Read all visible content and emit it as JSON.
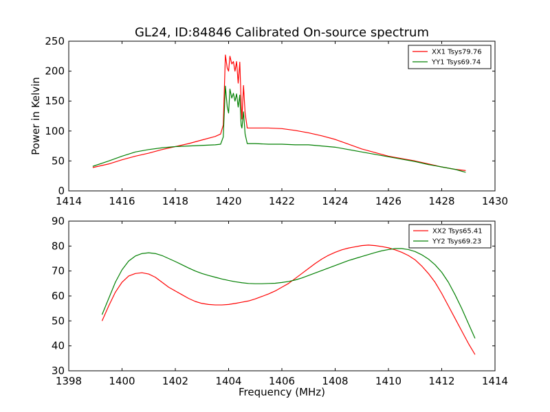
{
  "figure_title": "GL24, ID:84846 Calibrated On-source spectrum",
  "chart_data": [
    {
      "type": "line",
      "title": "GL24, ID:84846 Calibrated On-source spectrum",
      "xlabel": "",
      "ylabel": "Power in Kelvin",
      "xlim": [
        1414,
        1430
      ],
      "ylim": [
        0,
        250
      ],
      "xticks": [
        1414,
        1416,
        1418,
        1420,
        1422,
        1424,
        1426,
        1428,
        1430
      ],
      "yticks": [
        0,
        50,
        100,
        150,
        200,
        250
      ],
      "legend_position": "top-right",
      "series": [
        {
          "name": "XX1 Tsys79.76",
          "color": "#ff0000",
          "x": [
            1414.9,
            1415.5,
            1416.0,
            1416.5,
            1417.0,
            1417.5,
            1418.0,
            1418.5,
            1419.0,
            1419.5,
            1419.7,
            1419.8,
            1419.88,
            1419.95,
            1420.0,
            1420.05,
            1420.12,
            1420.18,
            1420.24,
            1420.3,
            1420.36,
            1420.42,
            1420.47,
            1420.5,
            1420.56,
            1420.62,
            1420.7,
            1421.0,
            1421.5,
            1422.0,
            1422.5,
            1423.0,
            1423.5,
            1424.0,
            1424.5,
            1425.0,
            1425.5,
            1426.0,
            1426.5,
            1427.0,
            1427.5,
            1428.0,
            1428.5,
            1428.9
          ],
          "y": [
            39,
            45,
            52,
            58,
            63,
            69,
            74,
            79,
            85,
            91,
            95,
            110,
            227,
            205,
            200,
            225,
            212,
            216,
            200,
            216,
            180,
            215,
            150,
            120,
            176,
            130,
            105,
            105,
            105,
            104,
            101,
            97,
            92,
            86,
            78,
            70,
            64,
            58,
            54,
            50,
            45,
            40,
            36,
            34
          ]
        },
        {
          "name": "YY1 Tsys69.74",
          "color": "#007f00",
          "x": [
            1414.9,
            1415.5,
            1416.0,
            1416.5,
            1417.0,
            1417.5,
            1418.0,
            1418.5,
            1419.0,
            1419.5,
            1419.7,
            1419.8,
            1419.88,
            1419.95,
            1420.0,
            1420.05,
            1420.12,
            1420.18,
            1420.24,
            1420.3,
            1420.36,
            1420.42,
            1420.47,
            1420.5,
            1420.56,
            1420.62,
            1420.7,
            1421.0,
            1421.5,
            1422.0,
            1422.5,
            1423.0,
            1423.5,
            1424.0,
            1424.5,
            1425.0,
            1425.5,
            1426.0,
            1426.5,
            1427.0,
            1427.5,
            1428.0,
            1428.5,
            1428.9
          ],
          "y": [
            41,
            50,
            58,
            65,
            69,
            72,
            74,
            75,
            76,
            77,
            78,
            90,
            175,
            140,
            130,
            170,
            155,
            163,
            150,
            162,
            140,
            160,
            110,
            105,
            132,
            95,
            79,
            79,
            78,
            78,
            77,
            77,
            75,
            73,
            69,
            65,
            61,
            57,
            53,
            49,
            44,
            40,
            36,
            31
          ]
        }
      ]
    },
    {
      "type": "line",
      "title": "",
      "xlabel": "Frequency (MHz)",
      "ylabel": "",
      "xlim": [
        1398,
        1414
      ],
      "ylim": [
        30,
        90
      ],
      "xticks": [
        1398,
        1400,
        1402,
        1404,
        1406,
        1408,
        1410,
        1412,
        1414
      ],
      "yticks": [
        30,
        40,
        50,
        60,
        70,
        80,
        90
      ],
      "legend_position": "top-right",
      "series": [
        {
          "name": "XX2 Tsys65.41",
          "color": "#ff0000",
          "x": [
            1399.25,
            1399.5,
            1399.75,
            1400.0,
            1400.25,
            1400.5,
            1400.75,
            1401.0,
            1401.25,
            1401.5,
            1401.75,
            1402.0,
            1402.25,
            1402.5,
            1402.75,
            1403.0,
            1403.25,
            1403.5,
            1403.75,
            1404.0,
            1404.25,
            1404.5,
            1404.75,
            1405.0,
            1405.25,
            1405.5,
            1405.75,
            1406.0,
            1406.25,
            1406.5,
            1406.75,
            1407.0,
            1407.25,
            1407.5,
            1407.75,
            1408.0,
            1408.25,
            1408.5,
            1408.75,
            1409.0,
            1409.25,
            1409.5,
            1409.75,
            1410.0,
            1410.25,
            1410.5,
            1410.75,
            1411.0,
            1411.25,
            1411.5,
            1411.75,
            1412.0,
            1412.25,
            1412.5,
            1412.75,
            1413.0,
            1413.25
          ],
          "y": [
            50,
            56,
            61.5,
            65.5,
            68,
            69,
            69.3,
            68.8,
            67.5,
            65.5,
            63.5,
            62,
            60.5,
            59,
            57.8,
            57,
            56.6,
            56.4,
            56.4,
            56.6,
            57,
            57.5,
            58,
            58.8,
            59.8,
            60.8,
            62,
            63.5,
            65,
            67,
            69,
            71,
            73,
            74.8,
            76.3,
            77.5,
            78.5,
            79.2,
            79.7,
            80.2,
            80.4,
            80.2,
            79.8,
            79.3,
            78.5,
            77.5,
            76.2,
            74.5,
            72,
            69,
            65.5,
            61,
            56,
            51,
            46,
            41,
            36.5
          ]
        },
        {
          "name": "YY2 Tsys69.23",
          "color": "#007f00",
          "x": [
            1399.25,
            1399.5,
            1399.75,
            1400.0,
            1400.25,
            1400.5,
            1400.75,
            1401.0,
            1401.25,
            1401.5,
            1401.75,
            1402.0,
            1402.25,
            1402.5,
            1402.75,
            1403.0,
            1403.25,
            1403.5,
            1403.75,
            1404.0,
            1404.25,
            1404.5,
            1404.75,
            1405.0,
            1405.25,
            1405.5,
            1405.75,
            1406.0,
            1406.25,
            1406.5,
            1406.75,
            1407.0,
            1407.25,
            1407.5,
            1407.75,
            1408.0,
            1408.25,
            1408.5,
            1408.75,
            1409.0,
            1409.25,
            1409.5,
            1409.75,
            1410.0,
            1410.25,
            1410.5,
            1410.75,
            1411.0,
            1411.25,
            1411.5,
            1411.75,
            1412.0,
            1412.25,
            1412.5,
            1412.75,
            1413.0,
            1413.25
          ],
          "y": [
            52.5,
            59,
            65.5,
            70.5,
            74,
            76,
            77,
            77.3,
            77,
            76.2,
            75,
            73.8,
            72.5,
            71.2,
            70,
            69,
            68.2,
            67.5,
            66.8,
            66.2,
            65.7,
            65.3,
            65,
            64.9,
            64.9,
            65,
            65.1,
            65.4,
            65.8,
            66.4,
            67.2,
            68.2,
            69.2,
            70.2,
            71.2,
            72.2,
            73.2,
            74.2,
            75,
            75.8,
            76.6,
            77.4,
            78.1,
            78.6,
            79,
            79,
            78.6,
            77.8,
            76.5,
            74.8,
            72.5,
            69.5,
            65.5,
            60.5,
            55,
            49,
            43
          ]
        }
      ]
    }
  ]
}
